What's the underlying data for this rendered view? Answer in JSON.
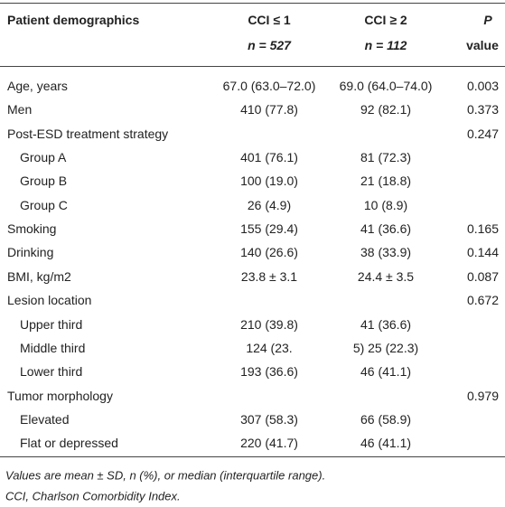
{
  "table": {
    "header": {
      "label": "Patient demographics",
      "col1": [
        "CCI ≤ 1",
        "n = 527"
      ],
      "col2": [
        "CCI ≥ 2",
        "n = 112"
      ],
      "p": [
        "P",
        "value"
      ]
    },
    "rows": [
      {
        "label": "Age, years",
        "col1": "67.0 (63.0–72.0)",
        "col2": "69.0 (64.0–74.0)",
        "p": "0.003"
      },
      {
        "label": "Men",
        "col1": "410 (77.8)",
        "col2": "92 (82.1)",
        "p": "0.373"
      },
      {
        "label": "Post-ESD treatment strategy",
        "p": "0.247",
        "items": [
          {
            "label": "Group A",
            "col1": "401 (76.1)",
            "col2": "81 (72.3)"
          },
          {
            "label": "Group B",
            "col1": "100 (19.0)",
            "col2": "21 (18.8)"
          },
          {
            "label": "Group C",
            "col1": "26 (4.9)",
            "col2": "10 (8.9)"
          }
        ]
      },
      {
        "label": "Smoking",
        "col1": "155 (29.4)",
        "col2": "41 (36.6)",
        "p": "0.165"
      },
      {
        "label": "Drinking",
        "col1": "140 (26.6)",
        "col2": "38 (33.9)",
        "p": "0.144"
      },
      {
        "label": "BMI, kg/m2",
        "col1": "23.8 ± 3.1",
        "col2": "24.4 ± 3.5",
        "p": "0.087"
      },
      {
        "label": "Lesion location",
        "p": "0.672",
        "items": [
          {
            "label": "Upper third",
            "col1": "210 (39.8)",
            "col2": "41 (36.6)"
          },
          {
            "label": "Middle third",
            "col1": "124 (23.",
            "col2": "5) 25 (22.3)"
          },
          {
            "label": "Lower third",
            "col1": "193 (36.6)",
            "col2": "46 (41.1)"
          }
        ]
      },
      {
        "label": "Tumor morphology",
        "p": "0.979",
        "items": [
          {
            "label": "Elevated",
            "col1": "307 (58.3)",
            "col2": "66 (58.9)"
          },
          {
            "label": "Flat or depressed",
            "col1": "220 (41.7)",
            "col2": "46 (41.1)"
          }
        ]
      }
    ],
    "footnotes": [
      "Values are mean ± SD, n (%), or median (interquartile range).",
      "CCI, Charlson Comorbidity Index."
    ]
  }
}
